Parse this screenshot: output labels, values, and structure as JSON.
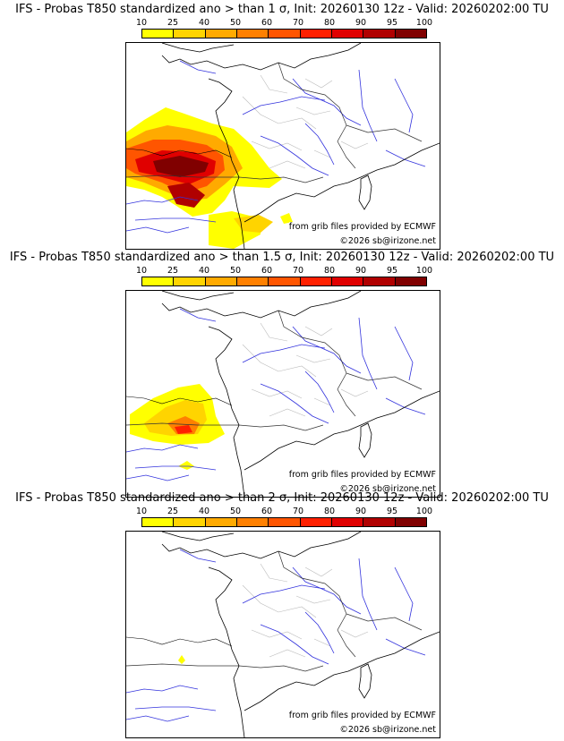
{
  "colorbar": {
    "labels": [
      "10",
      "25",
      "40",
      "50",
      "60",
      "70",
      "80",
      "90",
      "95",
      "100"
    ],
    "colors": [
      "#ffff00",
      "#ffd400",
      "#ffaa00",
      "#ff8000",
      "#ff5500",
      "#ff2000",
      "#e00000",
      "#b00000",
      "#800000"
    ]
  },
  "panels": [
    {
      "title": "IFS - Probas T850  standardized ano > than 1 σ, Init: 20260130 12z - Valid: 20260202:00 TU",
      "credit_source": "from grib files provided by ECMWF",
      "credit_copyright": "©2026 sb@irizone.net",
      "anomaly_level": "large"
    },
    {
      "title": "IFS - Probas T850  standardized ano > than 1.5 σ, Init: 20260130 12z - Valid: 20260202:00 TU",
      "credit_source": "from grib files provided by ECMWF",
      "credit_copyright": "©2026 sb@irizone.net",
      "anomaly_level": "medium"
    },
    {
      "title": "IFS - Probas T850  standardized ano > than 2 σ, Init: 20260130 12z - Valid: 20260202:00 TU",
      "credit_source": "from grib files provided by ECMWF",
      "credit_copyright": "©2026 sb@irizone.net",
      "anomaly_level": "small"
    }
  ]
}
